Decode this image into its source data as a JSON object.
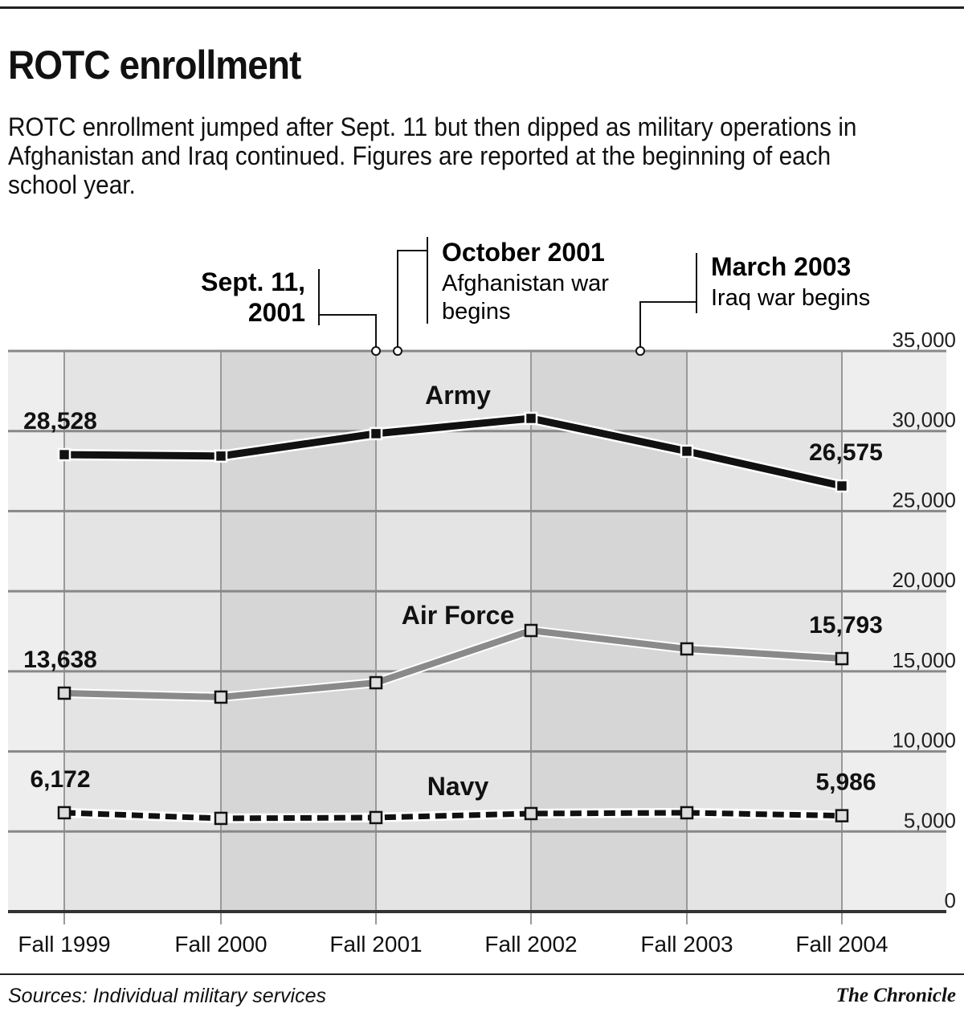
{
  "title": "ROTC enrollment",
  "subtitle": "ROTC enrollment jumped after Sept. 11 but then dipped as military operations in Afghanistan and Iraq continued. Figures are reported at the beginning of each school year.",
  "source": "Sources: Individual military services",
  "credit": "The Chronicle",
  "annotations": [
    {
      "x": "Fall 2001",
      "title": "Sept. 11,",
      "title2": "2001",
      "body": "",
      "body2": ""
    },
    {
      "x": "Fall 2001+",
      "title": "October 2001",
      "title2": "",
      "body": "Afghanistan war",
      "body2": "begins"
    },
    {
      "x": "Fall 2002+",
      "title": "March 2003",
      "title2": "",
      "body": "Iraq war begins",
      "body2": ""
    }
  ],
  "chart_data": {
    "type": "line",
    "title": "ROTC enrollment",
    "categories": [
      "Fall 1999",
      "Fall 2000",
      "Fall 2001",
      "Fall 2002",
      "Fall 2003",
      "Fall 2004"
    ],
    "ylim": [
      0,
      35000
    ],
    "yticks": [
      "0",
      "5,000",
      "10,000",
      "15,000",
      "20,000",
      "25,000",
      "30,000",
      "35,000"
    ],
    "ytick_values": [
      0,
      5000,
      10000,
      15000,
      20000,
      25000,
      30000,
      35000
    ],
    "y_axis_side": "right",
    "grid": true,
    "series": [
      {
        "name": "Army",
        "values": [
          28528,
          28440,
          29840,
          30790,
          28740,
          26575
        ],
        "labels": [
          "28,528",
          "",
          "",
          "",
          "",
          "26,575"
        ],
        "color": "#111111",
        "style": "solid"
      },
      {
        "name": "Air Force",
        "values": [
          13638,
          13390,
          14290,
          17550,
          16400,
          15793
        ],
        "labels": [
          "13,638",
          "",
          "",
          "",
          "",
          "15,793"
        ],
        "color": "#8a8a8a",
        "style": "solid"
      },
      {
        "name": "Navy",
        "values": [
          6172,
          5820,
          5870,
          6120,
          6170,
          5986
        ],
        "labels": [
          "6,172",
          "",
          "",
          "",
          "",
          "5,986"
        ],
        "color": "#111111",
        "style": "dashed"
      }
    ]
  }
}
